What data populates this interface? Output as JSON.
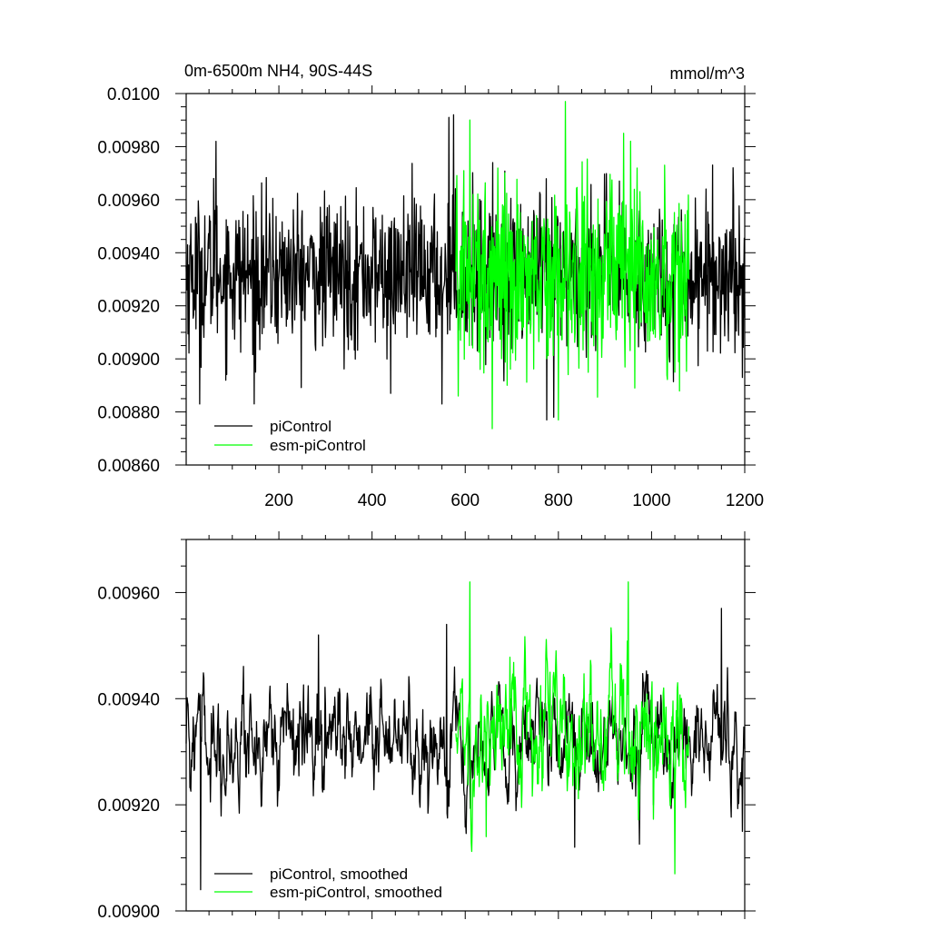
{
  "chart_data": [
    {
      "type": "line",
      "title": "0m-6500m NH4, 90S-44S",
      "units": "mmol/m^3",
      "xlim": [
        1,
        1200
      ],
      "ylim": [
        0.0086,
        0.01
      ],
      "x_ticks": [
        200,
        400,
        600,
        800,
        1000,
        1200
      ],
      "x_tick_labels": [
        "200",
        "400",
        "600",
        "800",
        "1000",
        "1200"
      ],
      "y_ticks": [
        0.0086,
        0.0088,
        0.009,
        0.0092,
        0.0094,
        0.0096,
        0.0098,
        0.01
      ],
      "y_tick_labels": [
        "0.00860",
        "0.00880",
        "0.00900",
        "0.00920",
        "0.00940",
        "0.00960",
        "0.00980",
        "0.0100"
      ],
      "legend": "bottom-left",
      "series": [
        {
          "name": "piControl",
          "color": "#000000",
          "x_start": 1,
          "x_step": 1,
          "mean": 0.00932,
          "spread": 0.00014,
          "n": 1200,
          "key_points": [
            [
              30,
              0.00883
            ],
            [
              60,
              0.00968
            ],
            [
              65,
              0.00982
            ],
            [
              150,
              0.00895
            ],
            [
              440,
              0.00887
            ],
            [
              550,
              0.00883
            ],
            [
              565,
              0.00991
            ],
            [
              575,
              0.00992
            ],
            [
              775,
              0.00877
            ],
            [
              790,
              0.00878
            ],
            [
              1175,
              0.00972
            ],
            [
              1195,
              0.00893
            ]
          ]
        },
        {
          "name": "esm-piControl",
          "color": "#00ff00",
          "x_start": 580,
          "x_step": 1,
          "mean": 0.00933,
          "spread": 0.00018,
          "n": 501,
          "key_points": [
            [
              585,
              0.00886
            ],
            [
              610,
              0.0099
            ],
            [
              800,
              0.00877
            ],
            [
              815,
              0.00997
            ],
            [
              940,
              0.00985
            ],
            [
              1050,
              0.00895
            ]
          ]
        }
      ]
    },
    {
      "type": "line",
      "title": "",
      "xlim": [
        1,
        1200
      ],
      "ylim": [
        0.009,
        0.0097
      ],
      "x_ticks": [
        200,
        400,
        600,
        800,
        1000,
        1200
      ],
      "y_ticks": [
        0.009,
        0.0092,
        0.0094,
        0.0096
      ],
      "y_tick_labels": [
        "0.00900",
        "0.00920",
        "0.00940",
        "0.00960"
      ],
      "legend": "bottom-left",
      "series": [
        {
          "name": "piControl, smoothed",
          "color": "#000000",
          "x_start": 1,
          "x_step": 1,
          "mean": 0.00932,
          "spread": 6e-05,
          "n": 1200,
          "key_points": [
            [
              32,
              0.00904
            ],
            [
              45,
              0.00928
            ],
            [
              285,
              0.00952
            ],
            [
              560,
              0.00954
            ],
            [
              835,
              0.00912
            ],
            [
              1150,
              0.00957
            ],
            [
              1195,
              0.00915
            ]
          ]
        },
        {
          "name": "esm-piControl, smoothed",
          "color": "#00ff00",
          "x_start": 580,
          "x_step": 1,
          "mean": 0.00932,
          "spread": 8e-05,
          "n": 501,
          "key_points": [
            [
              610,
              0.00962
            ],
            [
              645,
              0.00914
            ],
            [
              950,
              0.00962
            ],
            [
              1050,
              0.00907
            ]
          ]
        }
      ]
    }
  ]
}
